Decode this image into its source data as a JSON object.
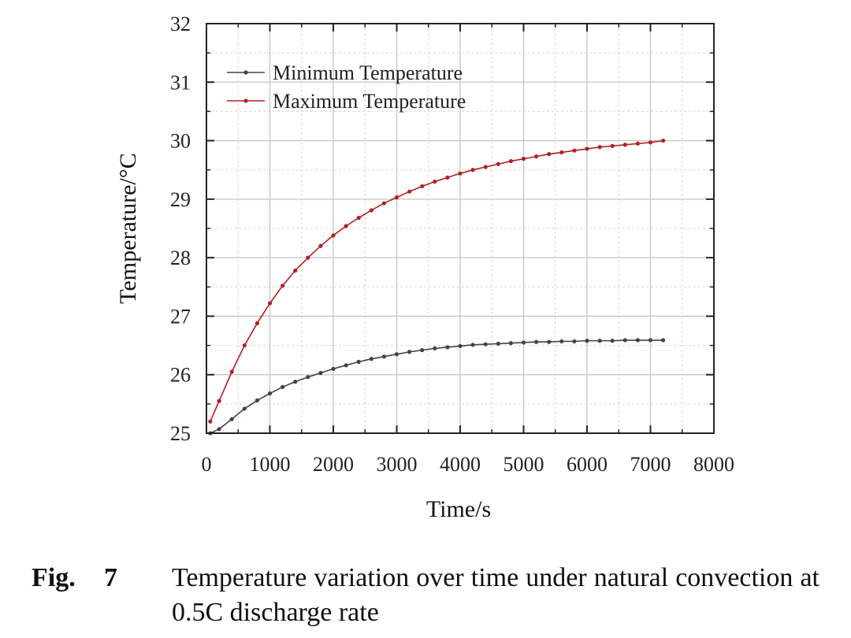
{
  "chart_data": {
    "type": "line",
    "xlabel": "Time/s",
    "ylabel": "Temperature/°C",
    "xlim": [
      0,
      8000
    ],
    "ylim": [
      25,
      32
    ],
    "xticks": [
      0,
      1000,
      2000,
      3000,
      4000,
      5000,
      6000,
      7000,
      8000
    ],
    "yticks": [
      25,
      26,
      27,
      28,
      29,
      30,
      31,
      32
    ],
    "grid": true,
    "legend_position": "top-left",
    "x": [
      60,
      200,
      400,
      600,
      800,
      1000,
      1200,
      1400,
      1600,
      1800,
      2000,
      2200,
      2400,
      2600,
      2800,
      3000,
      3200,
      3400,
      3600,
      3800,
      4000,
      4200,
      4400,
      4600,
      4800,
      5000,
      5200,
      5400,
      5600,
      5800,
      6000,
      6200,
      6400,
      6600,
      6800,
      7000,
      7200
    ],
    "series": [
      {
        "name": "Minimum Temperature",
        "color": "#4a3f45",
        "values": [
          25.0,
          25.07,
          25.24,
          25.42,
          25.56,
          25.68,
          25.79,
          25.88,
          25.96,
          26.03,
          26.1,
          26.16,
          26.22,
          26.27,
          26.31,
          26.35,
          26.39,
          26.42,
          26.45,
          26.47,
          26.49,
          26.51,
          26.52,
          26.53,
          26.54,
          26.55,
          26.56,
          26.56,
          26.57,
          26.57,
          26.58,
          26.58,
          26.58,
          26.59,
          26.59,
          26.59,
          26.59
        ]
      },
      {
        "name": "Maximum Temperature",
        "color": "#b22024",
        "values": [
          25.2,
          25.55,
          26.05,
          26.5,
          26.88,
          27.22,
          27.52,
          27.78,
          28.0,
          28.2,
          28.38,
          28.54,
          28.68,
          28.81,
          28.93,
          29.03,
          29.13,
          29.22,
          29.3,
          29.37,
          29.44,
          29.5,
          29.55,
          29.6,
          29.65,
          29.69,
          29.73,
          29.77,
          29.8,
          29.83,
          29.86,
          29.89,
          29.91,
          29.93,
          29.95,
          29.97,
          30.0
        ]
      }
    ]
  },
  "caption": {
    "label": "Fig.",
    "number": "7",
    "text": "Temperature variation over time under natural convection at 0.5C discharge rate"
  }
}
